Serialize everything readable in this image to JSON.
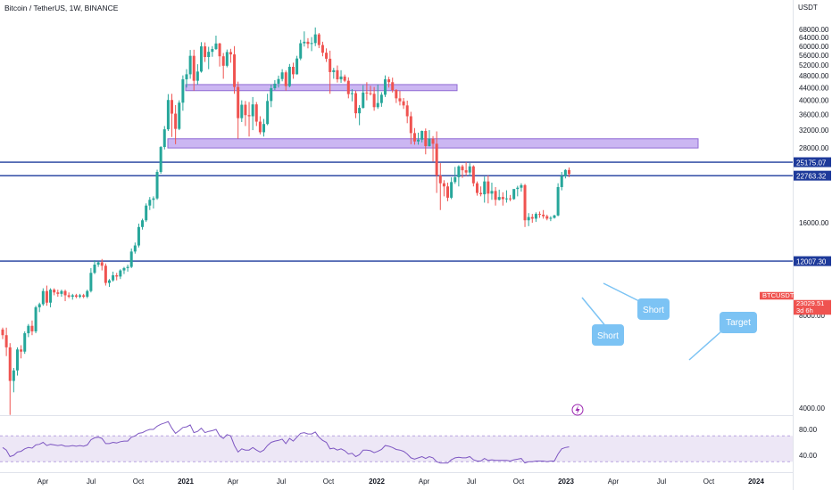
{
  "header": {
    "title": "Bitcoin / TetherUS, 1W, BINANCE",
    "currency": "USDT"
  },
  "colors": {
    "up": "#26a69a",
    "down": "#ef5350",
    "level_line": "#1b3a9c",
    "zone_fill": "#c9b3f2",
    "zone_stroke": "#8a63d2",
    "rsi_line": "#7e57c2",
    "rsi_band": "#ede7f6",
    "callout": "#7cc3f4",
    "callout_text": "#ffffff",
    "badge_blue": "#1e3a9a",
    "badge_red": "#ef5350"
  },
  "price_axis": {
    "ticks": [
      "68000.00",
      "64000.00",
      "60000.00",
      "56000.00",
      "52000.00",
      "48000.00",
      "44000.00",
      "40000.00",
      "36000.00",
      "32000.00",
      "28000.00",
      "16000.00",
      "8000.00",
      "4000.00"
    ]
  },
  "rsi_axis": {
    "ticks": [
      "80.00",
      "40.00"
    ]
  },
  "time_axis": {
    "labels": [
      "Apr",
      "Jul",
      "Oct",
      "2021",
      "Apr",
      "Jul",
      "Oct",
      "2022",
      "Apr",
      "Jul",
      "Oct",
      "2023",
      "Apr",
      "Jul",
      "Oct",
      "2024",
      "Apr"
    ]
  },
  "badges": [
    {
      "text": "25175.07",
      "style": "blue"
    },
    {
      "text": "BTCUSDT",
      "style": "red"
    },
    {
      "text": "23029.51",
      "style": "red"
    },
    {
      "text": "3d 6h",
      "style": "red"
    },
    {
      "text": "22763.32",
      "style": "blue"
    },
    {
      "text": "12007.30",
      "style": "blue"
    }
  ],
  "callouts": [
    "Short",
    "Short",
    "Target"
  ],
  "chart_data": {
    "type": "candlestick",
    "symbol": "Bitcoin / TetherUS",
    "interval": "1W",
    "exchange": "BINANCE",
    "y_scale": "log",
    "ylim": [
      3500,
      70000
    ],
    "levels": [
      25175.07,
      22763.32,
      12007.3
    ],
    "zones": [
      [
        43000,
        45000
      ],
      [
        28000,
        30000
      ]
    ],
    "current_price": 23029.51,
    "candles": [
      [
        7200,
        7300,
        6700,
        6900
      ],
      [
        6900,
        7300,
        5900,
        6300
      ],
      [
        6300,
        6500,
        3800,
        4900
      ],
      [
        4900,
        5400,
        4500,
        5300
      ],
      [
        5300,
        6300,
        5100,
        6200
      ],
      [
        6200,
        6400,
        5800,
        6100
      ],
      [
        6100,
        7100,
        6000,
        7000
      ],
      [
        7000,
        7500,
        6800,
        7400
      ],
      [
        7400,
        7700,
        6900,
        7100
      ],
      [
        7100,
        8600,
        7000,
        8500
      ],
      [
        8500,
        8800,
        8200,
        8700
      ],
      [
        8700,
        9800,
        8600,
        9600
      ],
      [
        9600,
        10000,
        8600,
        8800
      ],
      [
        8800,
        9800,
        8500,
        9700
      ],
      [
        9700,
        9800,
        9300,
        9500
      ],
      [
        9500,
        9700,
        9200,
        9400
      ],
      [
        9400,
        9700,
        9200,
        9600
      ],
      [
        9600,
        9700,
        8900,
        9300
      ],
      [
        9300,
        9500,
        9100,
        9200
      ],
      [
        9200,
        9400,
        9000,
        9300
      ],
      [
        9300,
        9400,
        9100,
        9200
      ],
      [
        9200,
        9400,
        9100,
        9300
      ],
      [
        9300,
        9400,
        9100,
        9200
      ],
      [
        9200,
        9700,
        9100,
        9600
      ],
      [
        9600,
        11400,
        9500,
        11000
      ],
      [
        11000,
        12100,
        10900,
        11700
      ],
      [
        11700,
        12000,
        11500,
        11900
      ],
      [
        11900,
        12200,
        11200,
        11600
      ],
      [
        11600,
        11800,
        10000,
        10200
      ],
      [
        10200,
        10500,
        9900,
        10400
      ],
      [
        10400,
        11100,
        10300,
        10800
      ],
      [
        10800,
        11000,
        10400,
        10700
      ],
      [
        10700,
        11300,
        10500,
        11200
      ],
      [
        11200,
        11500,
        10900,
        11400
      ],
      [
        11400,
        11700,
        11100,
        11500
      ],
      [
        11500,
        13200,
        11400,
        12900
      ],
      [
        12900,
        13800,
        12700,
        13500
      ],
      [
        13500,
        15900,
        13300,
        15500
      ],
      [
        15500,
        16500,
        15200,
        16300
      ],
      [
        16300,
        18500,
        16100,
        18200
      ],
      [
        18200,
        19400,
        17600,
        19000
      ],
      [
        19000,
        19500,
        17800,
        19200
      ],
      [
        19200,
        23800,
        19000,
        23400
      ],
      [
        23400,
        28400,
        23100,
        28200
      ],
      [
        28200,
        33000,
        27700,
        32200
      ],
      [
        32200,
        41900,
        31800,
        40100
      ],
      [
        40100,
        42000,
        30400,
        36200
      ],
      [
        36200,
        38600,
        28800,
        32300
      ],
      [
        32300,
        40000,
        32000,
        39300
      ],
      [
        39300,
        48200,
        37000,
        46800
      ],
      [
        46800,
        50500,
        44000,
        48600
      ],
      [
        48600,
        58300,
        47000,
        55800
      ],
      [
        55800,
        58400,
        43000,
        46300
      ],
      [
        46300,
        52400,
        45000,
        49600
      ],
      [
        49600,
        61800,
        49200,
        59900
      ],
      [
        59900,
        61700,
        53300,
        55300
      ],
      [
        55300,
        59700,
        50500,
        57500
      ],
      [
        57500,
        60000,
        55400,
        58700
      ],
      [
        58700,
        64900,
        58300,
        61200
      ],
      [
        61200,
        61500,
        51500,
        55600
      ],
      [
        55600,
        57000,
        47000,
        51800
      ],
      [
        51800,
        58500,
        51200,
        57400
      ],
      [
        57400,
        58800,
        53000,
        56400
      ],
      [
        56400,
        60000,
        42000,
        44200
      ],
      [
        44200,
        46000,
        30000,
        35000
      ],
      [
        35000,
        40000,
        34000,
        38700
      ],
      [
        38700,
        39800,
        33000,
        35800
      ],
      [
        35800,
        39500,
        30500,
        35500
      ],
      [
        35500,
        41000,
        32000,
        38800
      ],
      [
        38800,
        39500,
        33000,
        34100
      ],
      [
        34100,
        35500,
        31000,
        31500
      ],
      [
        31500,
        34800,
        30500,
        33500
      ],
      [
        33500,
        42000,
        33200,
        39800
      ],
      [
        39800,
        45000,
        38000,
        43800
      ],
      [
        43800,
        46500,
        43200,
        45300
      ],
      [
        45300,
        48100,
        44000,
        46900
      ],
      [
        46900,
        50500,
        46100,
        49300
      ],
      [
        49300,
        50000,
        43000,
        44500
      ],
      [
        44500,
        52500,
        44100,
        51400
      ],
      [
        51400,
        53000,
        47000,
        48600
      ],
      [
        48600,
        55800,
        48500,
        54700
      ],
      [
        54700,
        62900,
        54000,
        61300
      ],
      [
        61300,
        67000,
        59800,
        62000
      ],
      [
        62000,
        63700,
        59000,
        61000
      ],
      [
        61000,
        64200,
        57800,
        61400
      ],
      [
        61400,
        69000,
        60000,
        65500
      ],
      [
        65500,
        66200,
        59100,
        60500
      ],
      [
        60500,
        62000,
        55600,
        57100
      ],
      [
        57100,
        59000,
        53300,
        54600
      ],
      [
        54600,
        58000,
        42000,
        49400
      ],
      [
        49400,
        51000,
        47000,
        50100
      ],
      [
        50100,
        51900,
        45700,
        46800
      ],
      [
        46800,
        50100,
        45600,
        47800
      ],
      [
        47800,
        48500,
        45800,
        46300
      ],
      [
        46300,
        47500,
        40600,
        41900
      ],
      [
        41900,
        43500,
        39700,
        42200
      ],
      [
        42200,
        43000,
        35000,
        36300
      ],
      [
        36300,
        38600,
        33200,
        37800
      ],
      [
        37800,
        44800,
        37600,
        42400
      ],
      [
        42400,
        45800,
        40000,
        42200
      ],
      [
        42200,
        44600,
        41500,
        42000
      ],
      [
        42000,
        44200,
        37000,
        38000
      ],
      [
        38000,
        45000,
        37500,
        39200
      ],
      [
        39200,
        42500,
        38100,
        41700
      ],
      [
        41700,
        48200,
        41000,
        46800
      ],
      [
        46800,
        47700,
        44000,
        45800
      ],
      [
        45800,
        47400,
        42400,
        43200
      ],
      [
        43200,
        43500,
        39200,
        40600
      ],
      [
        40600,
        42900,
        38500,
        39700
      ],
      [
        39700,
        40700,
        37500,
        38500
      ],
      [
        38500,
        39900,
        33700,
        35500
      ],
      [
        35500,
        36700,
        28800,
        31300
      ],
      [
        31300,
        32500,
        28700,
        29400
      ],
      [
        29400,
        31400,
        28700,
        29800
      ],
      [
        29800,
        31900,
        29200,
        31800
      ],
      [
        31800,
        32400,
        26700,
        28400
      ],
      [
        28400,
        32000,
        28300,
        30000
      ],
      [
        30000,
        30600,
        25300,
        28900
      ],
      [
        28900,
        31700,
        20000,
        22800
      ],
      [
        22800,
        25000,
        17600,
        21500
      ],
      [
        21500,
        22000,
        19500,
        21000
      ],
      [
        21000,
        21600,
        18800,
        19300
      ],
      [
        19300,
        22500,
        19100,
        21700
      ],
      [
        21700,
        24300,
        21400,
        22500
      ],
      [
        22500,
        24600,
        21000,
        24400
      ],
      [
        24400,
        24700,
        22400,
        23700
      ],
      [
        23700,
        25200,
        22700,
        23300
      ],
      [
        23300,
        25000,
        22700,
        24400
      ],
      [
        24400,
        24600,
        21000,
        21500
      ],
      [
        21500,
        21800,
        19600,
        20000
      ],
      [
        20000,
        21000,
        19500,
        19800
      ],
      [
        19800,
        22600,
        18600,
        21800
      ],
      [
        21800,
        22800,
        18500,
        19900
      ],
      [
        19900,
        21600,
        19000,
        20300
      ],
      [
        20300,
        20900,
        18200,
        19000
      ],
      [
        19000,
        20500,
        18900,
        19400
      ],
      [
        19400,
        20100,
        18200,
        19100
      ],
      [
        19100,
        20400,
        18600,
        19200
      ],
      [
        19200,
        19700,
        18800,
        19100
      ],
      [
        19100,
        20400,
        19000,
        20600
      ],
      [
        20600,
        21100,
        19500,
        20800
      ],
      [
        20800,
        21500,
        20200,
        21200
      ],
      [
        21200,
        21400,
        15500,
        16300
      ],
      [
        16300,
        17200,
        15600,
        16700
      ],
      [
        16700,
        17100,
        16000,
        16500
      ],
      [
        16500,
        17300,
        16100,
        17100
      ],
      [
        17100,
        17400,
        16600,
        17000
      ],
      [
        17000,
        17600,
        16500,
        16800
      ],
      [
        16800,
        17000,
        16300,
        16500
      ],
      [
        16500,
        16800,
        16200,
        16600
      ],
      [
        16600,
        17000,
        16500,
        16900
      ],
      [
        16900,
        21500,
        16800,
        20900
      ],
      [
        20900,
        23400,
        20400,
        22700
      ],
      [
        22700,
        23900,
        22300,
        23750
      ],
      [
        23750,
        24200,
        22500,
        23029.51
      ]
    ],
    "rsi": [
      52,
      48,
      38,
      40,
      45,
      46,
      50,
      52,
      51,
      56,
      57,
      60,
      55,
      57,
      56,
      55,
      56,
      54,
      54,
      55,
      54,
      55,
      54,
      56,
      64,
      67,
      68,
      66,
      58,
      58,
      60,
      59,
      61,
      62,
      62,
      68,
      70,
      74,
      75,
      78,
      80,
      80,
      85,
      88,
      90,
      92,
      82,
      74,
      78,
      83,
      84,
      87,
      75,
      77,
      82,
      75,
      77,
      78,
      80,
      70,
      66,
      72,
      70,
      55,
      45,
      50,
      48,
      48,
      52,
      48,
      45,
      48,
      55,
      60,
      62,
      63,
      65,
      58,
      66,
      62,
      68,
      74,
      75,
      73,
      73,
      76,
      68,
      63,
      60,
      50,
      51,
      48,
      50,
      47,
      42,
      43,
      38,
      41,
      48,
      48,
      47,
      44,
      46,
      49,
      55,
      54,
      52,
      49,
      48,
      46,
      42,
      36,
      34,
      36,
      38,
      35,
      38,
      36,
      30,
      28,
      28,
      28,
      33,
      36,
      37,
      36,
      36,
      38,
      33,
      31,
      31,
      35,
      32,
      33,
      32,
      32,
      32,
      32,
      31,
      33,
      34,
      35,
      28,
      30,
      30,
      31,
      31,
      31,
      30,
      31,
      31,
      42,
      50,
      52,
      53
    ],
    "rsi_band": [
      30,
      70
    ],
    "rsi_ylim": [
      15,
      95
    ]
  }
}
